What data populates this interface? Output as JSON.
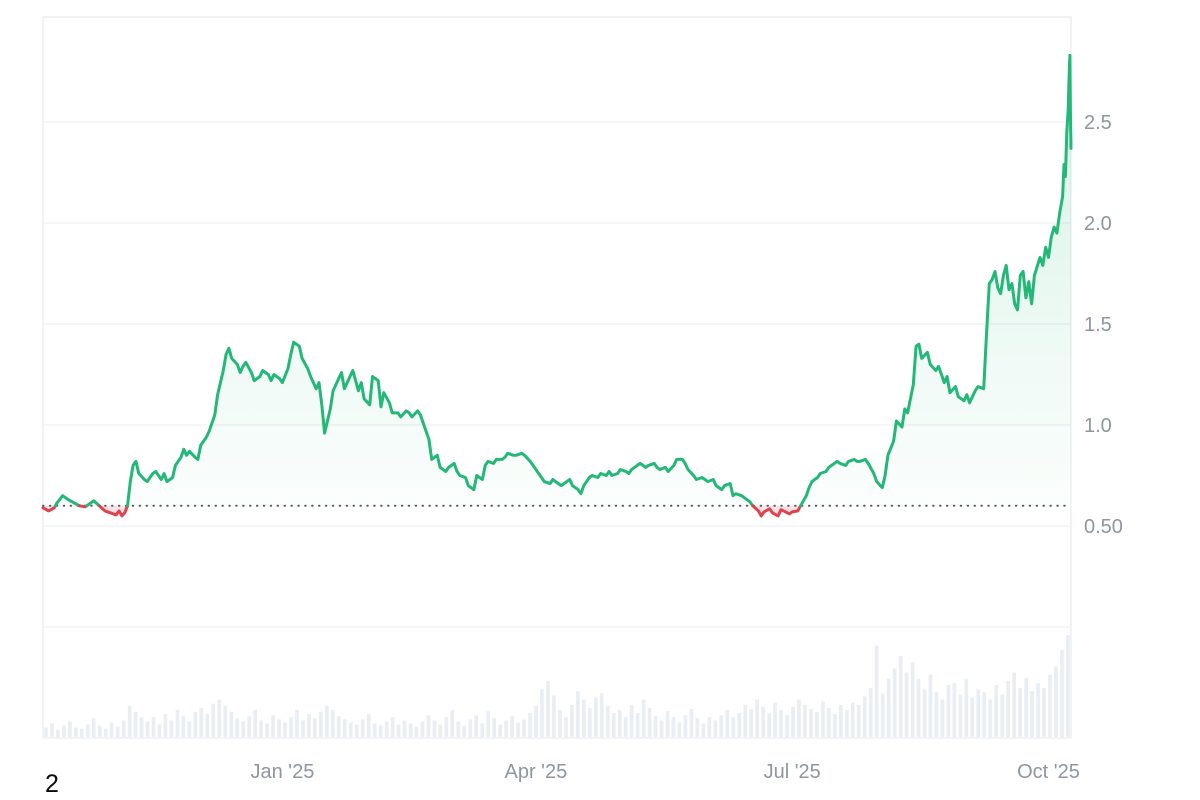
{
  "page": {
    "bottom_left_text": "2"
  },
  "chart_data": {
    "type": "line",
    "subtype": "price-chart-with-baseline-and-volume",
    "title": "",
    "legend": "none",
    "grid": "horizontal-only",
    "x_axis": {
      "range_days": [
        0,
        365
      ],
      "ticks": [
        {
          "label": "Jan '25",
          "day": 85
        },
        {
          "label": "Apr '25",
          "day": 175
        },
        {
          "label": "Jul '25",
          "day": 266
        },
        {
          "label": "Oct '25",
          "day": 357
        }
      ]
    },
    "y_axis": {
      "side": "right",
      "range": [
        0,
        3.02
      ],
      "ticks": [
        {
          "label": "2.5",
          "value": 2.5
        },
        {
          "label": "2.0",
          "value": 2.0
        },
        {
          "label": "1.5",
          "value": 1.5
        },
        {
          "label": "1.0",
          "value": 1.0
        },
        {
          "label": "0.50",
          "value": 0.5
        }
      ]
    },
    "baseline": {
      "value": 0.6,
      "style": "dotted"
    },
    "colors": {
      "up": "#23b877",
      "down": "#e1434e",
      "down_fill": "rgba(225,67,78,0.16)",
      "grid": "#edf0f2",
      "border": "#e9ebee",
      "axis_text": "#8d96a1",
      "volume_bar": "#e9eef5",
      "baseline_dots": "#55595f"
    },
    "series": {
      "name": "price",
      "points": [
        [
          0,
          0.59
        ],
        [
          2,
          0.575
        ],
        [
          4,
          0.59
        ],
        [
          5,
          0.615
        ],
        [
          7,
          0.65
        ],
        [
          9,
          0.63
        ],
        [
          11,
          0.615
        ],
        [
          13,
          0.6
        ],
        [
          15,
          0.595
        ],
        [
          17,
          0.615
        ],
        [
          18,
          0.625
        ],
        [
          20,
          0.6
        ],
        [
          22,
          0.575
        ],
        [
          24,
          0.565
        ],
        [
          26,
          0.555
        ],
        [
          27,
          0.575
        ],
        [
          28,
          0.55
        ],
        [
          29,
          0.565
        ],
        [
          30,
          0.6
        ],
        [
          31,
          0.72
        ],
        [
          32,
          0.8
        ],
        [
          33,
          0.82
        ],
        [
          34,
          0.76
        ],
        [
          36,
          0.73
        ],
        [
          37,
          0.72
        ],
        [
          39,
          0.76
        ],
        [
          40,
          0.77
        ],
        [
          42,
          0.73
        ],
        [
          43,
          0.76
        ],
        [
          44,
          0.72
        ],
        [
          46,
          0.74
        ],
        [
          47,
          0.8
        ],
        [
          49,
          0.84
        ],
        [
          50,
          0.88
        ],
        [
          51,
          0.85
        ],
        [
          52,
          0.87
        ],
        [
          54,
          0.84
        ],
        [
          55,
          0.83
        ],
        [
          56,
          0.9
        ],
        [
          58,
          0.94
        ],
        [
          59,
          0.97
        ],
        [
          61,
          1.05
        ],
        [
          62,
          1.15
        ],
        [
          64,
          1.27
        ],
        [
          65,
          1.35
        ],
        [
          66,
          1.38
        ],
        [
          67,
          1.33
        ],
        [
          69,
          1.3
        ],
        [
          70,
          1.26
        ],
        [
          71,
          1.29
        ],
        [
          72,
          1.31
        ],
        [
          74,
          1.26
        ],
        [
          75,
          1.22
        ],
        [
          77,
          1.24
        ],
        [
          78,
          1.27
        ],
        [
          80,
          1.25
        ],
        [
          81,
          1.22
        ],
        [
          82,
          1.25
        ],
        [
          84,
          1.23
        ],
        [
          85,
          1.21
        ],
        [
          87,
          1.28
        ],
        [
          88,
          1.35
        ],
        [
          89,
          1.41
        ],
        [
          91,
          1.39
        ],
        [
          92,
          1.33
        ],
        [
          94,
          1.28
        ],
        [
          95,
          1.24
        ],
        [
          97,
          1.18
        ],
        [
          98,
          1.21
        ],
        [
          99,
          1.1
        ],
        [
          100,
          0.96
        ],
        [
          102,
          1.08
        ],
        [
          103,
          1.17
        ],
        [
          104,
          1.2
        ],
        [
          106,
          1.26
        ],
        [
          107,
          1.18
        ],
        [
          109,
          1.24
        ],
        [
          110,
          1.27
        ],
        [
          112,
          1.17
        ],
        [
          113,
          1.21
        ],
        [
          114,
          1.13
        ],
        [
          116,
          1.1
        ],
        [
          117,
          1.24
        ],
        [
          119,
          1.22
        ],
        [
          120,
          1.09
        ],
        [
          121,
          1.16
        ],
        [
          123,
          1.11
        ],
        [
          124,
          1.06
        ],
        [
          126,
          1.06
        ],
        [
          127,
          1.04
        ],
        [
          129,
          1.07
        ],
        [
          130,
          1.06
        ],
        [
          131,
          1.04
        ],
        [
          133,
          1.07
        ],
        [
          134,
          1.05
        ],
        [
          136,
          0.97
        ],
        [
          137,
          0.93
        ],
        [
          138,
          0.83
        ],
        [
          140,
          0.85
        ],
        [
          141,
          0.79
        ],
        [
          143,
          0.77
        ],
        [
          144,
          0.79
        ],
        [
          146,
          0.81
        ],
        [
          147,
          0.77
        ],
        [
          148,
          0.75
        ],
        [
          150,
          0.74
        ],
        [
          151,
          0.7
        ],
        [
          153,
          0.68
        ],
        [
          154,
          0.75
        ],
        [
          156,
          0.73
        ],
        [
          157,
          0.8
        ],
        [
          158,
          0.82
        ],
        [
          160,
          0.81
        ],
        [
          161,
          0.83
        ],
        [
          163,
          0.83
        ],
        [
          164,
          0.84
        ],
        [
          165,
          0.86
        ],
        [
          167,
          0.85
        ],
        [
          168,
          0.85
        ],
        [
          170,
          0.86
        ],
        [
          171,
          0.85
        ],
        [
          173,
          0.82
        ],
        [
          174,
          0.8
        ],
        [
          175,
          0.78
        ],
        [
          177,
          0.74
        ],
        [
          178,
          0.72
        ],
        [
          180,
          0.71
        ],
        [
          181,
          0.73
        ],
        [
          182,
          0.72
        ],
        [
          184,
          0.7
        ],
        [
          185,
          0.71
        ],
        [
          187,
          0.73
        ],
        [
          188,
          0.7
        ],
        [
          190,
          0.68
        ],
        [
          191,
          0.66
        ],
        [
          192,
          0.7
        ],
        [
          194,
          0.74
        ],
        [
          195,
          0.75
        ],
        [
          197,
          0.74
        ],
        [
          198,
          0.76
        ],
        [
          200,
          0.75
        ],
        [
          201,
          0.77
        ],
        [
          202,
          0.75
        ],
        [
          204,
          0.76
        ],
        [
          205,
          0.78
        ],
        [
          207,
          0.77
        ],
        [
          208,
          0.76
        ],
        [
          209,
          0.78
        ],
        [
          211,
          0.8
        ],
        [
          212,
          0.81
        ],
        [
          214,
          0.79
        ],
        [
          215,
          0.8
        ],
        [
          217,
          0.81
        ],
        [
          218,
          0.79
        ],
        [
          219,
          0.78
        ],
        [
          221,
          0.79
        ],
        [
          222,
          0.77
        ],
        [
          224,
          0.8
        ],
        [
          225,
          0.83
        ],
        [
          227,
          0.83
        ],
        [
          228,
          0.81
        ],
        [
          229,
          0.78
        ],
        [
          231,
          0.75
        ],
        [
          232,
          0.73
        ],
        [
          234,
          0.74
        ],
        [
          235,
          0.73
        ],
        [
          236,
          0.72
        ],
        [
          238,
          0.73
        ],
        [
          239,
          0.7
        ],
        [
          241,
          0.68
        ],
        [
          242,
          0.7
        ],
        [
          244,
          0.71
        ],
        [
          245,
          0.65
        ],
        [
          246,
          0.66
        ],
        [
          248,
          0.65
        ],
        [
          249,
          0.64
        ],
        [
          251,
          0.62
        ],
        [
          252,
          0.6
        ],
        [
          254,
          0.575
        ],
        [
          255,
          0.55
        ],
        [
          256,
          0.57
        ],
        [
          258,
          0.585
        ],
        [
          259,
          0.565
        ],
        [
          261,
          0.55
        ],
        [
          262,
          0.58
        ],
        [
          263,
          0.575
        ],
        [
          265,
          0.56
        ],
        [
          266,
          0.57
        ],
        [
          268,
          0.575
        ],
        [
          269,
          0.6
        ],
        [
          271,
          0.65
        ],
        [
          272,
          0.69
        ],
        [
          273,
          0.72
        ],
        [
          275,
          0.74
        ],
        [
          276,
          0.76
        ],
        [
          278,
          0.77
        ],
        [
          279,
          0.79
        ],
        [
          281,
          0.81
        ],
        [
          282,
          0.82
        ],
        [
          283,
          0.81
        ],
        [
          285,
          0.8
        ],
        [
          286,
          0.82
        ],
        [
          288,
          0.83
        ],
        [
          289,
          0.82
        ],
        [
          290,
          0.82
        ],
        [
          292,
          0.83
        ],
        [
          293,
          0.81
        ],
        [
          295,
          0.76
        ],
        [
          296,
          0.72
        ],
        [
          298,
          0.69
        ],
        [
          299,
          0.75
        ],
        [
          300,
          0.85
        ],
        [
          302,
          0.92
        ],
        [
          303,
          1.02
        ],
        [
          305,
          0.99
        ],
        [
          306,
          1.08
        ],
        [
          307,
          1.06
        ],
        [
          309,
          1.2
        ],
        [
          310,
          1.39
        ],
        [
          311,
          1.4
        ],
        [
          312,
          1.33
        ],
        [
          314,
          1.36
        ],
        [
          315,
          1.3
        ],
        [
          317,
          1.27
        ],
        [
          318,
          1.29
        ],
        [
          320,
          1.21
        ],
        [
          321,
          1.24
        ],
        [
          322,
          1.16
        ],
        [
          324,
          1.19
        ],
        [
          325,
          1.14
        ],
        [
          327,
          1.12
        ],
        [
          328,
          1.15
        ],
        [
          329,
          1.11
        ],
        [
          331,
          1.17
        ],
        [
          332,
          1.19
        ],
        [
          334,
          1.18
        ],
        [
          335,
          1.45
        ],
        [
          336,
          1.7
        ],
        [
          337,
          1.72
        ],
        [
          338,
          1.76
        ],
        [
          339,
          1.68
        ],
        [
          340,
          1.65
        ],
        [
          341,
          1.74
        ],
        [
          342,
          1.79
        ],
        [
          343,
          1.67
        ],
        [
          344,
          1.7
        ],
        [
          345,
          1.6
        ],
        [
          346,
          1.57
        ],
        [
          347,
          1.74
        ],
        [
          348,
          1.76
        ],
        [
          349,
          1.63
        ],
        [
          350,
          1.71
        ],
        [
          351,
          1.6
        ],
        [
          352,
          1.74
        ],
        [
          354,
          1.83
        ],
        [
          355,
          1.79
        ],
        [
          356,
          1.88
        ],
        [
          357,
          1.83
        ],
        [
          358,
          1.93
        ],
        [
          359,
          1.98
        ],
        [
          360,
          1.95
        ],
        [
          361,
          2.05
        ],
        [
          362,
          2.13
        ],
        [
          362.5,
          2.29
        ],
        [
          363,
          2.23
        ],
        [
          363.5,
          2.45
        ],
        [
          364,
          2.56
        ],
        [
          364.3,
          2.71
        ],
        [
          364.6,
          2.83
        ],
        [
          364.8,
          2.56
        ],
        [
          365,
          2.37
        ]
      ]
    },
    "volume": {
      "name": "volume",
      "unit": "relative-height-percent",
      "bars": [
        9,
        13,
        7,
        11,
        15,
        9,
        8,
        12,
        18,
        11,
        8,
        14,
        10,
        16,
        30,
        24,
        19,
        15,
        19,
        12,
        22,
        16,
        26,
        20,
        15,
        24,
        28,
        22,
        32,
        36,
        30,
        24,
        18,
        15,
        20,
        26,
        16,
        13,
        21,
        17,
        14,
        19,
        26,
        16,
        22,
        18,
        24,
        30,
        26,
        20,
        17,
        14,
        12,
        17,
        22,
        13,
        11,
        15,
        19,
        12,
        16,
        13,
        10,
        15,
        21,
        16,
        12,
        19,
        26,
        15,
        11,
        17,
        21,
        13,
        25,
        18,
        12,
        16,
        20,
        14,
        17,
        23,
        30,
        46,
        54,
        40,
        26,
        19,
        31,
        44,
        36,
        28,
        38,
        42,
        30,
        23,
        26,
        19,
        31,
        23,
        36,
        28,
        20,
        16,
        25,
        19,
        14,
        21,
        27,
        18,
        13,
        19,
        16,
        21,
        26,
        19,
        23,
        31,
        27,
        36,
        29,
        23,
        33,
        26,
        21,
        29,
        36,
        31,
        27,
        24,
        34,
        28,
        22,
        31,
        26,
        33,
        31,
        39,
        47,
        88,
        42,
        56,
        66,
        78,
        62,
        72,
        56,
        46,
        60,
        43,
        36,
        50,
        52,
        41,
        56,
        38,
        46,
        43,
        36,
        50,
        41,
        54,
        62,
        47,
        57,
        44,
        52,
        47,
        60,
        68,
        84,
        98
      ]
    }
  }
}
